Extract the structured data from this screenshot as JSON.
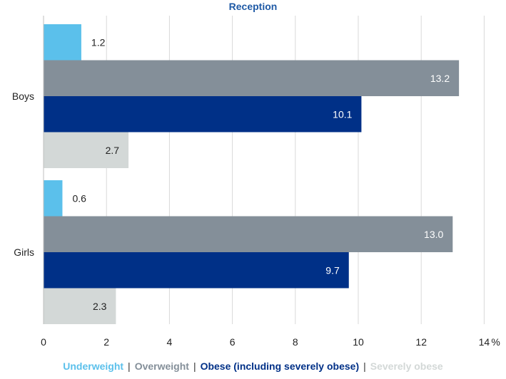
{
  "chart_data": {
    "type": "bar",
    "orientation": "horizontal",
    "title": "Reception",
    "title_color": "#1f5aa6",
    "xlabel": "",
    "ylabel": "",
    "unit_label": "%",
    "xlim": [
      0,
      14
    ],
    "xticks": [
      0,
      2,
      4,
      6,
      8,
      10,
      12,
      14
    ],
    "grid": "vertical",
    "legend_placement": "bottom",
    "categories": [
      "Boys",
      "Girls"
    ],
    "series": [
      {
        "name": "Underweight",
        "values": [
          1.2,
          0.6
        ],
        "labels": [
          "1.2",
          "0.6"
        ],
        "color": "#5bc0eb",
        "label_inside": false
      },
      {
        "name": "Overweight",
        "values": [
          13.2,
          13.0
        ],
        "labels": [
          "13.2",
          "13.0"
        ],
        "color": "#848f99",
        "label_inside": true
      },
      {
        "name": "Obese (including severely obese)",
        "values": [
          10.1,
          9.7
        ],
        "labels": [
          "10.1",
          "9.7"
        ],
        "color": "#003087",
        "label_inside": true
      },
      {
        "name": "Severely obese",
        "values": [
          2.7,
          2.3
        ],
        "labels": [
          "2.7",
          "2.3"
        ],
        "color": "#d3d8d7",
        "label_inside": true
      }
    ]
  },
  "legend_separator": "|"
}
